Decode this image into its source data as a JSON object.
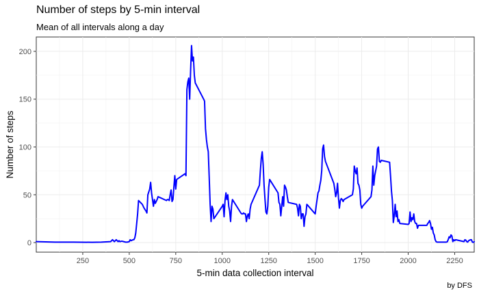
{
  "chart_data": {
    "type": "line",
    "title": "Number of steps by 5-min interval",
    "subtitle": "Mean of all intervals along a day",
    "xlabel": "5-min data collection interval",
    "ylabel": "Number of steps",
    "caption": "by DFS",
    "xlim": [
      0,
      2355
    ],
    "ylim": [
      -10,
      215
    ],
    "x_ticks": [
      250,
      500,
      750,
      1000,
      1250,
      1500,
      1750,
      2000,
      2250
    ],
    "y_ticks": [
      0,
      50,
      100,
      150,
      200
    ],
    "grid": true,
    "series_color": "#0000ff",
    "series": [
      {
        "points": [
          [
            0,
            1
          ],
          [
            100,
            0.5
          ],
          [
            200,
            0.5
          ],
          [
            300,
            0.3
          ],
          [
            350,
            0.5
          ],
          [
            400,
            1
          ],
          [
            410,
            3
          ],
          [
            420,
            1
          ],
          [
            430,
            3
          ],
          [
            440,
            1
          ],
          [
            445,
            2
          ],
          [
            450,
            1
          ],
          [
            460,
            1.5
          ],
          [
            470,
            1
          ],
          [
            480,
            0.5
          ],
          [
            490,
            0.5
          ],
          [
            500,
            1
          ],
          [
            505,
            3
          ],
          [
            510,
            2
          ],
          [
            515,
            2.5
          ],
          [
            520,
            3
          ],
          [
            525,
            3
          ],
          [
            530,
            5
          ],
          [
            535,
            10
          ],
          [
            540,
            20
          ],
          [
            545,
            30
          ],
          [
            550,
            44
          ],
          [
            560,
            42
          ],
          [
            570,
            40
          ],
          [
            580,
            36
          ],
          [
            590,
            33
          ],
          [
            595,
            31
          ],
          [
            600,
            50
          ],
          [
            610,
            56
          ],
          [
            615,
            63
          ],
          [
            620,
            52
          ],
          [
            625,
            45
          ],
          [
            630,
            38
          ],
          [
            635,
            45
          ],
          [
            640,
            41
          ],
          [
            650,
            45
          ],
          [
            655,
            48
          ],
          [
            700,
            44
          ],
          [
            705,
            45
          ],
          [
            710,
            45
          ],
          [
            715,
            44
          ],
          [
            720,
            50
          ],
          [
            725,
            55
          ],
          [
            730,
            43
          ],
          [
            735,
            45
          ],
          [
            740,
            58
          ],
          [
            745,
            70
          ],
          [
            750,
            56
          ],
          [
            755,
            66
          ],
          [
            800,
            72
          ],
          [
            805,
            70
          ],
          [
            810,
            160
          ],
          [
            815,
            168
          ],
          [
            820,
            172
          ],
          [
            825,
            150
          ],
          [
            830,
            180
          ],
          [
            835,
            206
          ],
          [
            840,
            190
          ],
          [
            845,
            194
          ],
          [
            850,
            175
          ],
          [
            855,
            167
          ],
          [
            900,
            150
          ],
          [
            905,
            148
          ],
          [
            910,
            119
          ],
          [
            915,
            108
          ],
          [
            920,
            100
          ],
          [
            925,
            95
          ],
          [
            930,
            68
          ],
          [
            935,
            40
          ],
          [
            940,
            22
          ],
          [
            945,
            38
          ],
          [
            950,
            35
          ],
          [
            955,
            25
          ],
          [
            1000,
            38
          ],
          [
            1005,
            40
          ],
          [
            1010,
            27
          ],
          [
            1015,
            44
          ],
          [
            1020,
            52
          ],
          [
            1025,
            45
          ],
          [
            1030,
            50
          ],
          [
            1035,
            38
          ],
          [
            1040,
            33
          ],
          [
            1045,
            22
          ],
          [
            1050,
            38
          ],
          [
            1055,
            45
          ],
          [
            1100,
            31
          ],
          [
            1105,
            30
          ],
          [
            1110,
            30
          ],
          [
            1115,
            31
          ],
          [
            1120,
            30
          ],
          [
            1125,
            30
          ],
          [
            1130,
            22
          ],
          [
            1135,
            28
          ],
          [
            1140,
            30
          ],
          [
            1145,
            25
          ],
          [
            1150,
            35
          ],
          [
            1155,
            40
          ],
          [
            1200,
            60
          ],
          [
            1205,
            75
          ],
          [
            1210,
            88
          ],
          [
            1215,
            95
          ],
          [
            1220,
            82
          ],
          [
            1225,
            60
          ],
          [
            1230,
            45
          ],
          [
            1235,
            32
          ],
          [
            1240,
            30
          ],
          [
            1245,
            38
          ],
          [
            1250,
            58
          ],
          [
            1255,
            66
          ],
          [
            1300,
            52
          ],
          [
            1305,
            42
          ],
          [
            1310,
            40
          ],
          [
            1315,
            28
          ],
          [
            1320,
            38
          ],
          [
            1325,
            48
          ],
          [
            1330,
            38
          ],
          [
            1335,
            60
          ],
          [
            1340,
            58
          ],
          [
            1345,
            55
          ],
          [
            1350,
            48
          ],
          [
            1355,
            42
          ],
          [
            1400,
            40
          ],
          [
            1405,
            36
          ],
          [
            1410,
            28
          ],
          [
            1415,
            40
          ],
          [
            1420,
            38
          ],
          [
            1425,
            25
          ],
          [
            1430,
            30
          ],
          [
            1435,
            30
          ],
          [
            1440,
            17
          ],
          [
            1445,
            27
          ],
          [
            1450,
            30
          ],
          [
            1455,
            40
          ],
          [
            1500,
            30
          ],
          [
            1505,
            38
          ],
          [
            1510,
            45
          ],
          [
            1515,
            52
          ],
          [
            1520,
            54
          ],
          [
            1525,
            60
          ],
          [
            1530,
            65
          ],
          [
            1535,
            75
          ],
          [
            1540,
            98
          ],
          [
            1545,
            102
          ],
          [
            1550,
            90
          ],
          [
            1555,
            85
          ],
          [
            1600,
            62
          ],
          [
            1605,
            56
          ],
          [
            1610,
            48
          ],
          [
            1615,
            52
          ],
          [
            1620,
            62
          ],
          [
            1625,
            47
          ],
          [
            1630,
            36
          ],
          [
            1635,
            44
          ],
          [
            1640,
            46
          ],
          [
            1645,
            45
          ],
          [
            1650,
            43
          ],
          [
            1655,
            45
          ],
          [
            1700,
            50
          ],
          [
            1705,
            56
          ],
          [
            1710,
            80
          ],
          [
            1715,
            75
          ],
          [
            1720,
            72
          ],
          [
            1725,
            78
          ],
          [
            1730,
            62
          ],
          [
            1735,
            60
          ],
          [
            1740,
            55
          ],
          [
            1745,
            40
          ],
          [
            1750,
            36
          ],
          [
            1755,
            38
          ],
          [
            1800,
            48
          ],
          [
            1805,
            55
          ],
          [
            1810,
            80
          ],
          [
            1815,
            60
          ],
          [
            1820,
            70
          ],
          [
            1825,
            75
          ],
          [
            1830,
            80
          ],
          [
            1835,
            98
          ],
          [
            1840,
            100
          ],
          [
            1845,
            85
          ],
          [
            1850,
            84
          ],
          [
            1855,
            86
          ],
          [
            1900,
            84
          ],
          [
            1905,
            70
          ],
          [
            1910,
            54
          ],
          [
            1915,
            44
          ],
          [
            1920,
            21
          ],
          [
            1925,
            28
          ],
          [
            1930,
            40
          ],
          [
            1935,
            27
          ],
          [
            1940,
            33
          ],
          [
            1945,
            22
          ],
          [
            1950,
            24
          ],
          [
            1955,
            20
          ],
          [
            2000,
            19
          ],
          [
            2005,
            20
          ],
          [
            2010,
            32
          ],
          [
            2015,
            22
          ],
          [
            2020,
            26
          ],
          [
            2025,
            24
          ],
          [
            2030,
            30
          ],
          [
            2035,
            22
          ],
          [
            2040,
            20
          ],
          [
            2045,
            20
          ],
          [
            2050,
            15
          ],
          [
            2055,
            18
          ],
          [
            2100,
            18
          ],
          [
            2105,
            20
          ],
          [
            2110,
            21
          ],
          [
            2115,
            23
          ],
          [
            2120,
            20
          ],
          [
            2125,
            14
          ],
          [
            2130,
            16
          ],
          [
            2135,
            10
          ],
          [
            2140,
            8
          ],
          [
            2145,
            3
          ],
          [
            2150,
            1
          ],
          [
            2155,
            0.5
          ],
          [
            2200,
            0.5
          ],
          [
            2205,
            0.5
          ],
          [
            2210,
            0.8
          ],
          [
            2215,
            3
          ],
          [
            2220,
            6
          ],
          [
            2225,
            5
          ],
          [
            2230,
            8
          ],
          [
            2235,
            7
          ],
          [
            2240,
            1
          ],
          [
            2245,
            3
          ],
          [
            2250,
            2
          ],
          [
            2255,
            3
          ],
          [
            2300,
            1
          ],
          [
            2305,
            3
          ],
          [
            2310,
            2.5
          ],
          [
            2315,
            1
          ],
          [
            2320,
            0.5
          ],
          [
            2325,
            2
          ],
          [
            2330,
            2.5
          ],
          [
            2335,
            3
          ],
          [
            2340,
            3
          ],
          [
            2345,
            0.5
          ],
          [
            2350,
            0.2
          ],
          [
            2355,
            1
          ]
        ]
      }
    ]
  }
}
